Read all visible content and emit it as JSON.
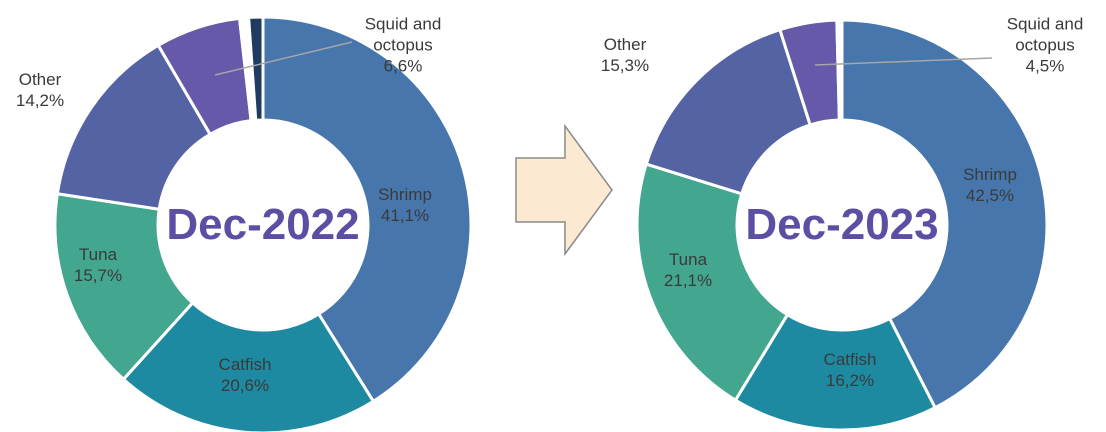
{
  "chart_data": [
    {
      "type": "donut",
      "title": "Dec-2022",
      "categories": [
        "Shrimp",
        "Catfish",
        "Tuna",
        "Other",
        "Squid and octopus",
        null,
        null
      ],
      "values": [
        41.1,
        20.6,
        15.7,
        14.2,
        6.6,
        0.7,
        1.1
      ],
      "value_labels": [
        "41,1%",
        "20,6%",
        "15,7%",
        "14,2%",
        "6,6%",
        null,
        null
      ],
      "colors": [
        "#4676ac",
        "#1d8aa1",
        "#43a68f",
        "#5463a3",
        "#6659a9",
        "#ffffff",
        "#1f3b60"
      ]
    },
    {
      "type": "donut",
      "title": "Dec-2023",
      "categories": [
        "Shrimp",
        "Catfish",
        "Tuna",
        "Other",
        "Squid and octopus",
        null
      ],
      "values": [
        42.5,
        16.2,
        21.1,
        15.3,
        4.5,
        0.4
      ],
      "value_labels": [
        "42,5%",
        "16,2%",
        "21,1%",
        "15,3%",
        "4,5%",
        null
      ],
      "colors": [
        "#4676ac",
        "#1d8aa1",
        "#43a68f",
        "#5463a3",
        "#6659a9",
        "#ffffff"
      ]
    }
  ]
}
